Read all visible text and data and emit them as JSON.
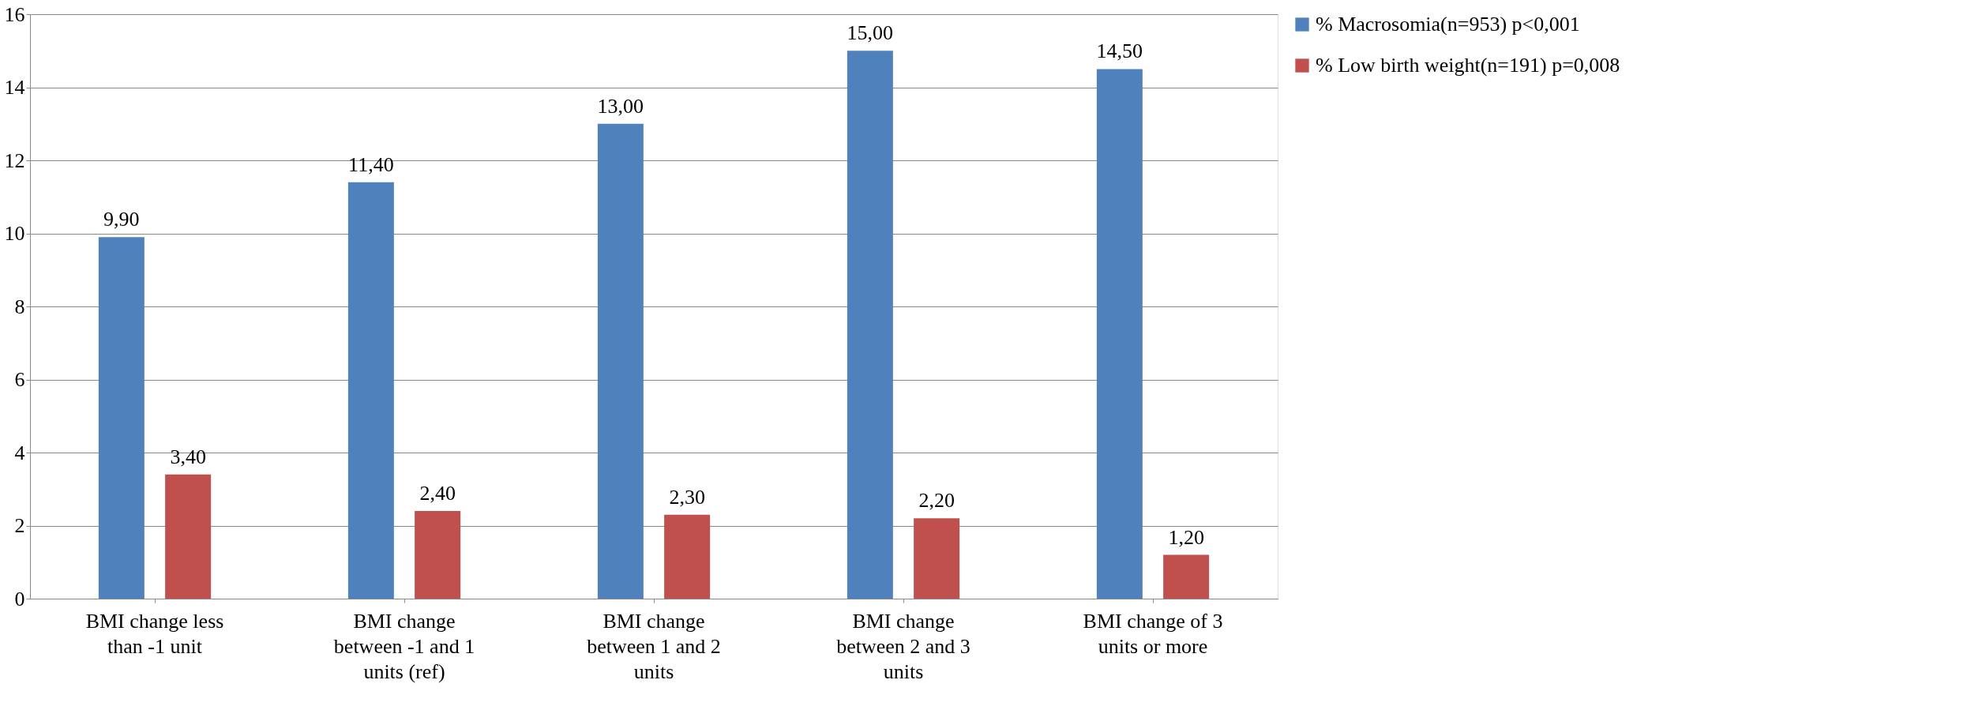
{
  "chart_data": {
    "type": "bar",
    "categories": [
      "BMI change less than -1 unit",
      "BMI change between -1 and 1 units (ref)",
      "BMI change between 1 and 2 units",
      "BMI change between 2 and 3 units",
      "BMI change of 3 units or more"
    ],
    "series": [
      {
        "name": "% Macrosomia(n=953) p<0,001",
        "color": "#4f81bd",
        "values": [
          9.9,
          11.4,
          13.0,
          15.0,
          14.5
        ],
        "value_labels": [
          "9,90",
          "11,40",
          "13,00",
          "15,00",
          "14,50"
        ]
      },
      {
        "name": "% Low birth weight(n=191) p=0,008",
        "color": "#c0504d",
        "values": [
          3.4,
          2.4,
          2.3,
          2.2,
          1.2
        ],
        "value_labels": [
          "3,40",
          "2,40",
          "2,30",
          "2,20",
          "1,20"
        ]
      }
    ],
    "ylim": [
      0,
      16
    ],
    "yticks": [
      0,
      2,
      4,
      6,
      8,
      10,
      12,
      14,
      16
    ],
    "grid": "y",
    "legend": "right"
  }
}
